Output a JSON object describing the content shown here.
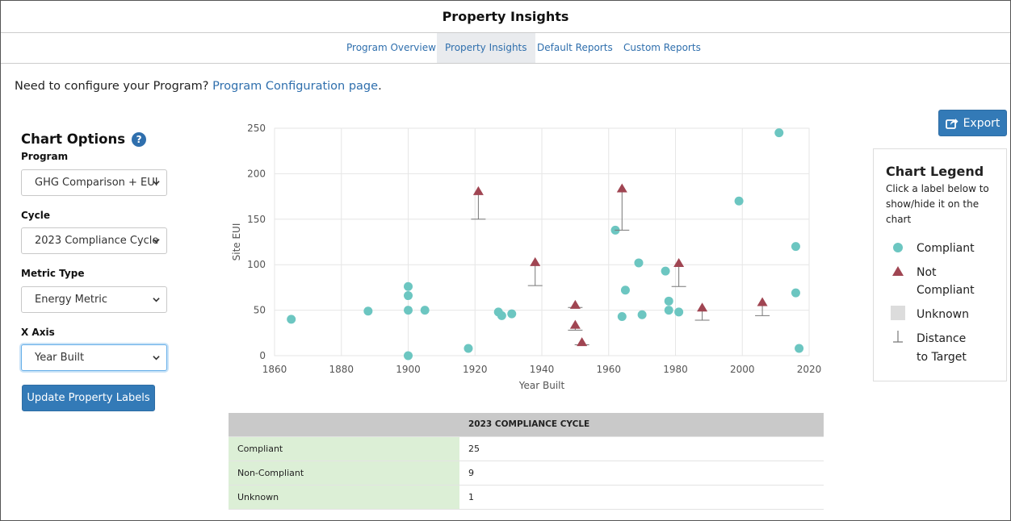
{
  "page_title": "Property Insights",
  "tabs": [
    {
      "label": "Program Overview",
      "active": false
    },
    {
      "label": "Property Insights",
      "active": true
    },
    {
      "label": "Default Reports",
      "active": false
    },
    {
      "label": "Custom Reports",
      "active": false
    }
  ],
  "config": {
    "prefix": "Need to configure your Program?",
    "link": "Program Configuration page",
    "suffix": "."
  },
  "options": {
    "title": "Chart Options",
    "help_glyph": "?",
    "program": {
      "label": "Program",
      "value": "GHG Comparison + EUI"
    },
    "cycle": {
      "label": "Cycle",
      "value": "2023 Compliance Cycle"
    },
    "metric_type": {
      "label": "Metric Type",
      "value": "Energy Metric"
    },
    "x_axis": {
      "label": "X Axis",
      "value": "Year Built"
    },
    "update_button": "Update Property Labels"
  },
  "export_button": "Export",
  "legend": {
    "title": "Chart Legend",
    "hint": "Click a label below to show/hide it on the chart",
    "items": [
      {
        "line1": "Compliant",
        "line2": ""
      },
      {
        "line1": "Not",
        "line2": "Compliant"
      },
      {
        "line1": "Unknown",
        "line2": ""
      },
      {
        "line1": "Distance",
        "line2": "to Target"
      }
    ]
  },
  "colors": {
    "compliant": "#6cc6c1",
    "non_compliant": "#a04552",
    "unknown": "#dcdcdc",
    "accent": "#337ab7",
    "link": "#2f6fad"
  },
  "chart_data": {
    "type": "scatter",
    "xlabel": "Year Built",
    "ylabel": "Site EUI",
    "xlim": [
      1860,
      2020
    ],
    "ylim": [
      0,
      250
    ],
    "xticks": [
      1860,
      1880,
      1900,
      1920,
      1940,
      1960,
      1980,
      2000,
      2020
    ],
    "yticks": [
      0,
      50,
      100,
      150,
      200,
      250
    ],
    "grid": true,
    "series": [
      {
        "name": "Compliant",
        "points": [
          [
            1865,
            40
          ],
          [
            1888,
            49
          ],
          [
            1900,
            76
          ],
          [
            1900,
            66
          ],
          [
            1900,
            50
          ],
          [
            1900,
            0
          ],
          [
            1905,
            50
          ],
          [
            1918,
            8
          ],
          [
            1927,
            48
          ],
          [
            1928,
            44
          ],
          [
            1931,
            46
          ],
          [
            1962,
            138
          ],
          [
            1964,
            43
          ],
          [
            1965,
            72
          ],
          [
            1969,
            102
          ],
          [
            1970,
            45
          ],
          [
            1977,
            93
          ],
          [
            1978,
            60
          ],
          [
            1978,
            50
          ],
          [
            1981,
            48
          ],
          [
            1999,
            170
          ],
          [
            2011,
            245
          ],
          [
            2016,
            120
          ],
          [
            2016,
            69
          ],
          [
            2017,
            8
          ]
        ]
      },
      {
        "name": "Not Compliant",
        "points": [
          [
            1921,
            181,
            150
          ],
          [
            1938,
            103,
            77
          ],
          [
            1950,
            56,
            53
          ],
          [
            1950,
            34,
            28
          ],
          [
            1952,
            15,
            12
          ],
          [
            1964,
            184,
            138
          ],
          [
            1981,
            102,
            76
          ],
          [
            1988,
            53,
            39
          ],
          [
            2006,
            59,
            44
          ]
        ]
      }
    ]
  },
  "summary_table": {
    "header": [
      "",
      "2023 COMPLIANCE CYCLE"
    ],
    "rows": [
      {
        "label": "Compliant",
        "value": "25"
      },
      {
        "label": "Non-Compliant",
        "value": "9"
      },
      {
        "label": "Unknown",
        "value": "1"
      }
    ]
  }
}
